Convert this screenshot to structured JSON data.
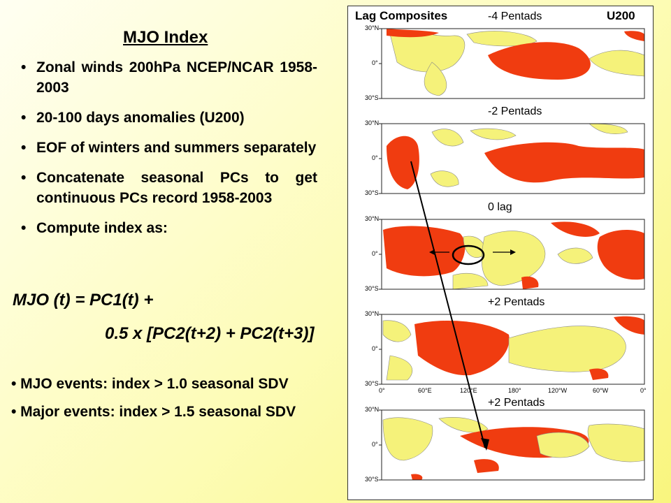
{
  "slide": {
    "title": "MJO Index",
    "bullets": [
      "Zonal winds 200hPa NCEP/NCAR 1958-2003",
      "20-100 days anomalies (U200)",
      "EOF of winters and summers separately",
      "Concatenate seasonal PCs to get continuous PCs record 1958-2003",
      "Compute index as:"
    ],
    "formula_line1": "MJO (t) = PC1(t) +",
    "formula_line2": "0.5 x [PC2(t+2) + PC2(t+3)]",
    "events": [
      "• MJO events:   index > 1.0 seasonal SDV",
      "• Major events: index > 1.5 seasonal SDV"
    ]
  },
  "figure": {
    "heading": "Lag Composites",
    "variable": "U200",
    "panel_labels": [
      "-4 Pentads",
      "-2 Pentads",
      "0 lag",
      "+2 Pentads",
      "+2 Pentads"
    ],
    "lat_labels": [
      "30°N",
      "0°",
      "30°S"
    ],
    "lon_labels": [
      "0°",
      "60°E",
      "120°E",
      "180°",
      "120°W",
      "60°W",
      "0°"
    ],
    "colors": {
      "positive": "#f03c10",
      "negative": "#f5f27a",
      "contour": "#555555"
    }
  }
}
